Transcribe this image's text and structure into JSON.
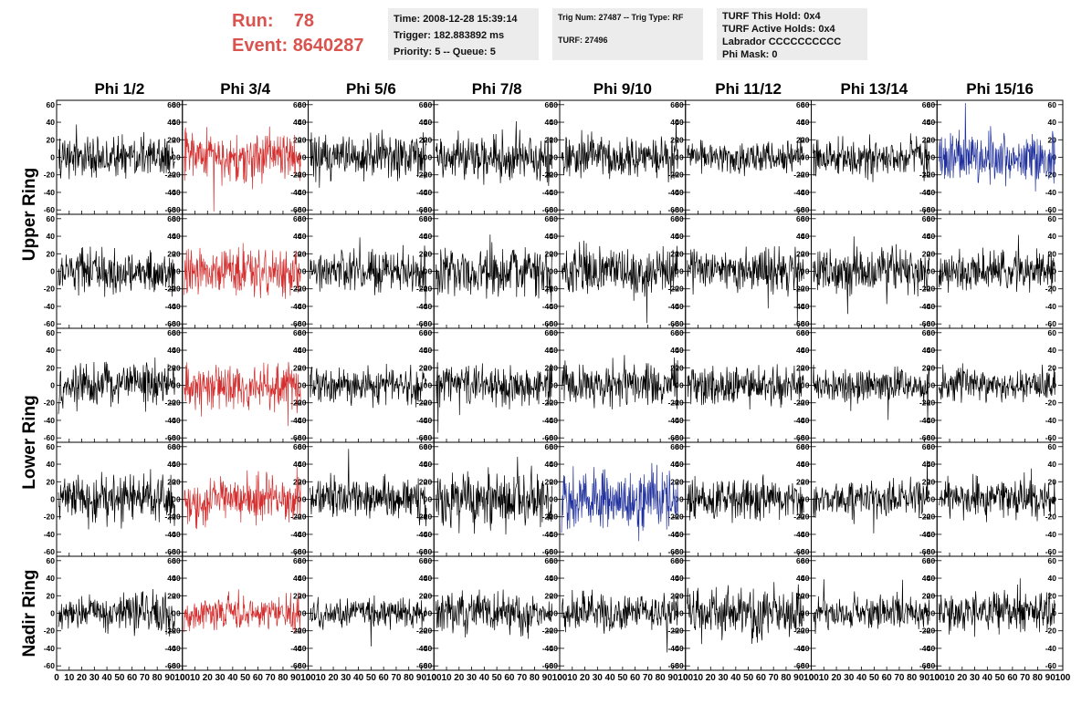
{
  "header": {
    "run_label": "Run:",
    "run_value": "78",
    "event_label": "Event:",
    "event_value": "8640287",
    "accent_color": "#d9534f"
  },
  "info_time": {
    "time": "Time: 2008-12-28 15:39:14",
    "trigger": "Trigger: 182.883892 ms",
    "priority": "Priority: 5 -- Queue: 5"
  },
  "info_trig": {
    "trig": "Trig Num: 27487 -- Trig Type: RF",
    "turf": "TURF: 27496"
  },
  "info_turf": {
    "hold": "TURF This Hold: 0x4",
    "active": "TURF Active Holds: 0x4",
    "labrador": "Labrador CCCCCCCCCC",
    "phimask": "Phi Mask: 0"
  },
  "chart_data": {
    "type": "line",
    "columns": [
      "Phi 1/2",
      "Phi 3/4",
      "Phi 5/6",
      "Phi 7/8",
      "Phi 9/10",
      "Phi 11/12",
      "Phi 13/14",
      "Phi 15/16"
    ],
    "ring_labels": [
      "Upper Ring",
      "Lower Ring",
      "Nadir Ring"
    ],
    "rows": 5,
    "ylim": [
      -65,
      65
    ],
    "yticks": [
      -60,
      -40,
      -20,
      0,
      20,
      40,
      60
    ],
    "xlim": [
      0,
      100
    ],
    "xticks": [
      0,
      10,
      20,
      30,
      40,
      50,
      60,
      70,
      80,
      90,
      100
    ],
    "x_tick_labels": [
      "0",
      "10",
      "20",
      "30",
      "40",
      "50",
      "60",
      "70",
      "80",
      "90",
      "100"
    ],
    "colors": {
      "normal": "#000000",
      "triggered": "#d32f2f",
      "highlight": "#1f2f9c"
    },
    "samples": 260,
    "panels": [
      [
        {
          "color": "normal",
          "amp": 14
        },
        {
          "color": "triggered",
          "amp": 18
        },
        {
          "color": "normal",
          "amp": 16
        },
        {
          "color": "normal",
          "amp": 15
        },
        {
          "color": "normal",
          "amp": 15
        },
        {
          "color": "normal",
          "amp": 11
        },
        {
          "color": "normal",
          "amp": 14
        },
        {
          "color": "highlight",
          "amp": 18
        }
      ],
      [
        {
          "color": "normal",
          "amp": 16
        },
        {
          "color": "triggered",
          "amp": 17
        },
        {
          "color": "normal",
          "amp": 15
        },
        {
          "color": "normal",
          "amp": 17
        },
        {
          "color": "normal",
          "amp": 16
        },
        {
          "color": "normal",
          "amp": 15
        },
        {
          "color": "normal",
          "amp": 15
        },
        {
          "color": "normal",
          "amp": 14
        }
      ],
      [
        {
          "color": "normal",
          "amp": 14
        },
        {
          "color": "triggered",
          "amp": 17
        },
        {
          "color": "normal",
          "amp": 13
        },
        {
          "color": "normal",
          "amp": 14
        },
        {
          "color": "normal",
          "amp": 15
        },
        {
          "color": "normal",
          "amp": 12
        },
        {
          "color": "normal",
          "amp": 12
        },
        {
          "color": "normal",
          "amp": 12
        }
      ],
      [
        {
          "color": "normal",
          "amp": 17
        },
        {
          "color": "triggered",
          "amp": 17
        },
        {
          "color": "normal",
          "amp": 15
        },
        {
          "color": "normal",
          "amp": 19
        },
        {
          "color": "highlight",
          "amp": 20
        },
        {
          "color": "normal",
          "amp": 14
        },
        {
          "color": "normal",
          "amp": 13
        },
        {
          "color": "normal",
          "amp": 14
        }
      ],
      [
        {
          "color": "normal",
          "amp": 13
        },
        {
          "color": "triggered",
          "amp": 12
        },
        {
          "color": "normal",
          "amp": 10
        },
        {
          "color": "normal",
          "amp": 14
        },
        {
          "color": "normal",
          "amp": 13
        },
        {
          "color": "normal",
          "amp": 17
        },
        {
          "color": "normal",
          "amp": 13
        },
        {
          "color": "normal",
          "amp": 14
        }
      ]
    ]
  }
}
